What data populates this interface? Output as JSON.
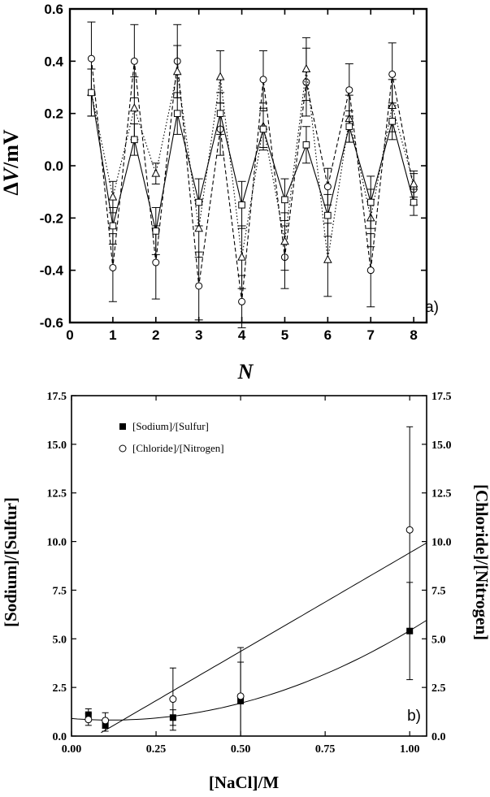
{
  "chart_data": [
    {
      "type": "line",
      "panel_label": "a)",
      "title": "",
      "xlabel": "N",
      "ylabel_delta": "Δ",
      "ylabel_var": "V",
      "ylabel_unit": "/mV",
      "xlim": [
        0,
        8.3
      ],
      "ylim": [
        -0.6,
        0.6
      ],
      "xticks": [
        "0",
        "1",
        "2",
        "3",
        "4",
        "5",
        "6",
        "7",
        "8"
      ],
      "yticks": [
        "-0.6",
        "-0.4",
        "-0.2",
        "0.0",
        "0.2",
        "0.4",
        "0.6"
      ],
      "x": [
        0.5,
        1,
        1.5,
        2,
        2.5,
        3,
        3.5,
        4,
        4.5,
        5,
        5.5,
        6,
        6.5,
        7,
        7.5,
        8
      ],
      "series": [
        {
          "name": "circles",
          "marker": "circle",
          "line": "dashed",
          "values": [
            0.41,
            -0.39,
            0.4,
            -0.37,
            0.4,
            -0.46,
            0.14,
            -0.52,
            0.33,
            -0.35,
            0.32,
            -0.08,
            0.29,
            -0.4,
            0.35,
            -0.09
          ],
          "errors": [
            0.14,
            0.13,
            0.14,
            0.14,
            0.14,
            0.13,
            0.1,
            0.1,
            0.11,
            0.12,
            0.13,
            0.07,
            0.1,
            0.14,
            0.12,
            0.06
          ]
        },
        {
          "name": "triangles",
          "marker": "triangle",
          "line": "dotted",
          "values": [
            0.28,
            -0.12,
            0.22,
            -0.03,
            0.36,
            -0.24,
            0.34,
            -0.35,
            0.15,
            -0.29,
            0.37,
            -0.36,
            0.18,
            -0.2,
            0.23,
            -0.07
          ],
          "errors": [
            0.09,
            0.06,
            0.12,
            0.04,
            0.1,
            0.11,
            0.1,
            0.12,
            0.09,
            0.11,
            0.12,
            0.14,
            0.09,
            0.11,
            0.1,
            0.05
          ]
        },
        {
          "name": "squares",
          "marker": "square",
          "line": "solid",
          "values": [
            0.28,
            -0.23,
            0.1,
            -0.25,
            0.2,
            -0.14,
            0.2,
            -0.15,
            0.14,
            -0.13,
            0.08,
            -0.19,
            0.15,
            -0.14,
            0.17,
            -0.14
          ],
          "errors": [
            0.09,
            0.07,
            0.06,
            0.09,
            0.08,
            0.09,
            0.08,
            0.09,
            0.07,
            0.08,
            0.07,
            0.08,
            0.06,
            0.1,
            0.07,
            0.05
          ]
        }
      ]
    },
    {
      "type": "scatter",
      "panel_label": "b)",
      "title": "",
      "xlabel": "[NaCl]/M",
      "ylabel": "[Sodium]/[Sulfur]",
      "ylabel_right": "[Chloride]/[Nitrogen]",
      "xlim": [
        0,
        1.05
      ],
      "ylim": [
        0,
        17.5
      ],
      "xticks": [
        "0.00",
        "0.25",
        "0.50",
        "0.75",
        "1.00"
      ],
      "yticks": [
        "0.0",
        "2.5",
        "5.0",
        "7.5",
        "10.0",
        "12.5",
        "15.0",
        "17.5"
      ],
      "legend_position": "top-left",
      "series": [
        {
          "name": "[Sodium]/[Sulfur]",
          "marker": "filled-square",
          "x": [
            0.05,
            0.1,
            0.3,
            0.5,
            1.0
          ],
          "y": [
            1.1,
            0.55,
            0.95,
            1.8,
            5.4
          ],
          "errors": [
            0.3,
            0.3,
            0.4,
            2.0,
            2.5
          ],
          "fit": "quadratic"
        },
        {
          "name": "[Chloride]/[Nitrogen]",
          "marker": "open-circle",
          "x": [
            0.05,
            0.1,
            0.3,
            0.5,
            1.0
          ],
          "y": [
            0.85,
            0.8,
            1.9,
            2.05,
            10.6
          ],
          "errors": [
            0.3,
            0.4,
            1.6,
            2.5,
            5.3
          ],
          "fit": "linear"
        }
      ]
    }
  ]
}
